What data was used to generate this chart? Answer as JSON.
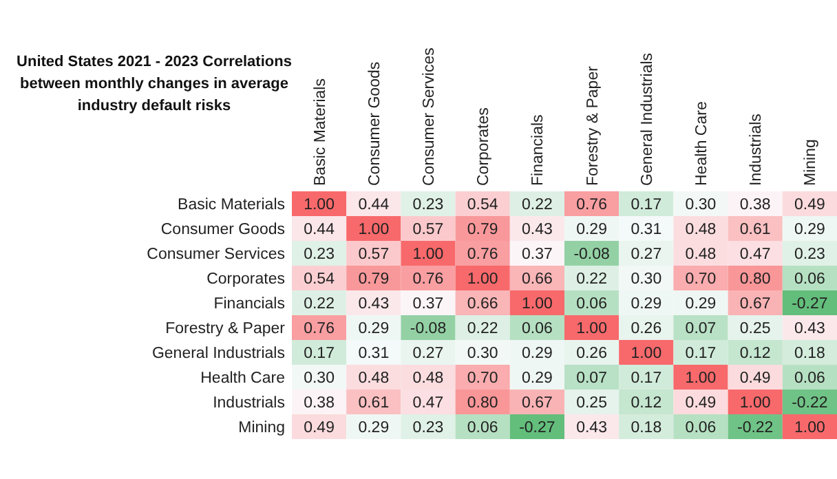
{
  "chart_data": {
    "type": "heatmap",
    "title": "United States 2021 - 2023 Correlations between monthly changes in average industry default risks",
    "categories": [
      "Basic Materials",
      "Consumer Goods",
      "Consumer Services",
      "Corporates",
      "Financials",
      "Forestry & Paper",
      "General Industrials",
      "Health Care",
      "Industrials",
      "Mining"
    ],
    "y_categories": [
      "Basic Materials",
      "Consumer Goods",
      "Consumer Services",
      "Corporates",
      "Financials",
      "Forestry & Paper",
      "General Industrials",
      "Health Care",
      "Industrials",
      "Mining"
    ],
    "cells": [
      [
        1.0,
        0.44,
        0.23,
        0.54,
        0.22,
        0.76,
        0.17,
        0.3,
        0.38,
        0.49
      ],
      [
        0.44,
        1.0,
        0.57,
        0.79,
        0.43,
        0.29,
        0.31,
        0.48,
        0.61,
        0.29
      ],
      [
        0.23,
        0.57,
        1.0,
        0.76,
        0.37,
        -0.08,
        0.27,
        0.48,
        0.47,
        0.23
      ],
      [
        0.54,
        0.79,
        0.76,
        1.0,
        0.66,
        0.22,
        0.3,
        0.7,
        0.8,
        0.06
      ],
      [
        0.22,
        0.43,
        0.37,
        0.66,
        1.0,
        0.06,
        0.29,
        0.29,
        0.67,
        -0.27
      ],
      [
        0.76,
        0.29,
        -0.08,
        0.22,
        0.06,
        1.0,
        0.26,
        0.07,
        0.25,
        0.43
      ],
      [
        0.17,
        0.31,
        0.27,
        0.3,
        0.29,
        0.26,
        1.0,
        0.17,
        0.12,
        0.18
      ],
      [
        0.3,
        0.48,
        0.48,
        0.7,
        0.29,
        0.07,
        0.17,
        1.0,
        0.49,
        0.06
      ],
      [
        0.38,
        0.61,
        0.47,
        0.8,
        0.67,
        0.25,
        0.12,
        0.49,
        1.0,
        -0.22
      ],
      [
        0.49,
        0.29,
        0.23,
        0.06,
        -0.27,
        0.43,
        0.18,
        0.06,
        -0.22,
        1.0
      ]
    ],
    "cell_labels": [
      [
        "1.00",
        "0.44",
        "0.23",
        "0.54",
        "0.22",
        "0.76",
        "0.17",
        "0.30",
        "0.38",
        "0.49"
      ],
      [
        "0.44",
        "1.00",
        "0.57",
        "0.79",
        "0.43",
        "0.29",
        "0.31",
        "0.48",
        "0.61",
        "0.29"
      ],
      [
        "0.23",
        "0.57",
        "1.00",
        "0.76",
        "0.37",
        "-0.08",
        "0.27",
        "0.48",
        "0.47",
        "0.23"
      ],
      [
        "0.54",
        "0.79",
        "0.76",
        "1.00",
        "0.66",
        "0.22",
        "0.30",
        "0.70",
        "0.80",
        "0.06"
      ],
      [
        "0.22",
        "0.43",
        "0.37",
        "0.66",
        "1.00",
        "0.06",
        "0.29",
        "0.29",
        "0.67",
        "-0.27"
      ],
      [
        "0.76",
        "0.29",
        "-0.08",
        "0.22",
        "0.06",
        "1.00",
        "0.26",
        "0.07",
        "0.25",
        "0.43"
      ],
      [
        "0.17",
        "0.31",
        "0.27",
        "0.30",
        "0.29",
        "0.26",
        "1.00",
        "0.17",
        "0.12",
        "0.18"
      ],
      [
        "0.30",
        "0.48",
        "0.48",
        "0.70",
        "0.29",
        "0.07",
        "0.17",
        "1.00",
        "0.49",
        "0.06"
      ],
      [
        "0.38",
        "0.61",
        "0.47",
        "0.80",
        "0.67",
        "0.25",
        "0.12",
        "0.49",
        "1.00",
        "-0.22"
      ],
      [
        "0.49",
        "0.29",
        "0.23",
        "0.06",
        "-0.27",
        "0.43",
        "0.18",
        "0.06",
        "-0.22",
        "1.00"
      ]
    ],
    "data_labels": true
  }
}
